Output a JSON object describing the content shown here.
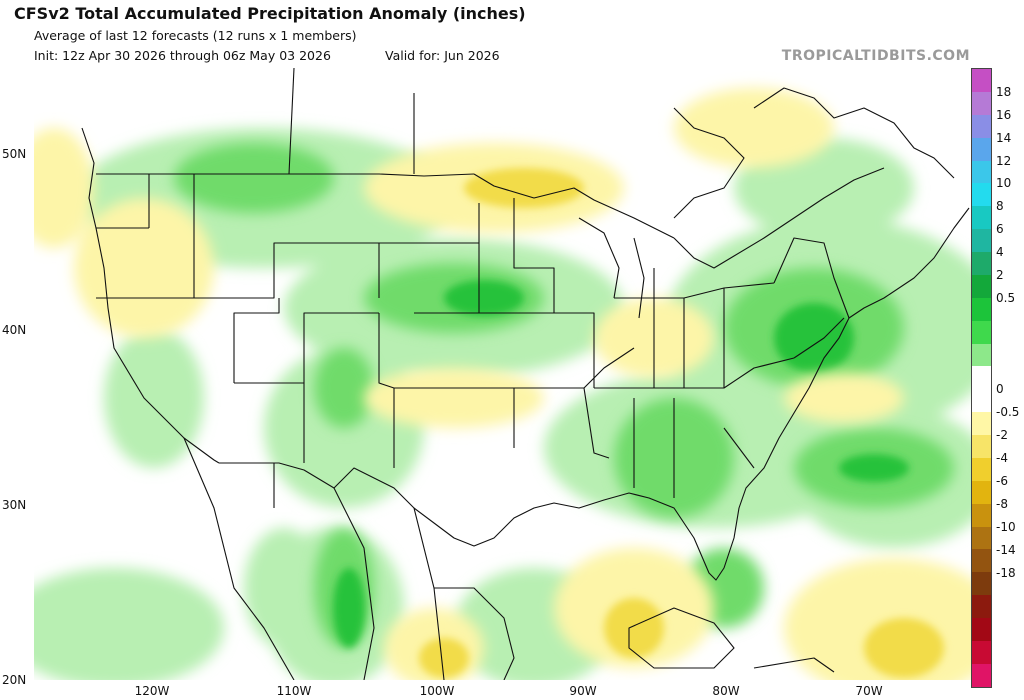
{
  "header": {
    "title": "CFSv2 Total Accumulated Precipitation Anomaly (inches)",
    "subtitle": "Average of last 12 forecasts (12 runs x 1 members)",
    "init": "Init: 12z Apr 30 2026 through 06z May 03 2026",
    "valid": "Valid for: Jun 2026",
    "watermark": "TROPICALTIDBITS.COM"
  },
  "map": {
    "lat_labels": [
      "50N",
      "40N",
      "30N",
      "20N"
    ],
    "lon_labels": [
      "120W",
      "110W",
      "100W",
      "90W",
      "80W",
      "70W"
    ],
    "colors": {
      "ocean": "#ffffff",
      "boundary": "#111111",
      "wet": "#34c759",
      "dry": "#f0d840"
    }
  },
  "colorbar": {
    "labels": [
      "18",
      "16",
      "14",
      "12",
      "10",
      "8",
      "6",
      "4",
      "2",
      "0.5",
      "0",
      "-0.5",
      "-2",
      "-4",
      "-6",
      "-8",
      "-10",
      "-14",
      "-18"
    ],
    "colors": [
      "#c54fc4",
      "#b57ad6",
      "#8a8ee6",
      "#5aa6ec",
      "#3bc7ea",
      "#23dbee",
      "#18c9c2",
      "#1fb6a1",
      "#1eaa6a",
      "#13a83a",
      "#1cc43a",
      "#3fd94c",
      "#8de88a",
      "#ffffff",
      "#ffffff",
      "#fff7a6",
      "#f7e468",
      "#f0cf2d",
      "#e2b40f",
      "#c9920e",
      "#ad7312",
      "#935410",
      "#7d3b0d",
      "#8c1a0e",
      "#a20815",
      "#c80a33",
      "#e01466"
    ]
  }
}
